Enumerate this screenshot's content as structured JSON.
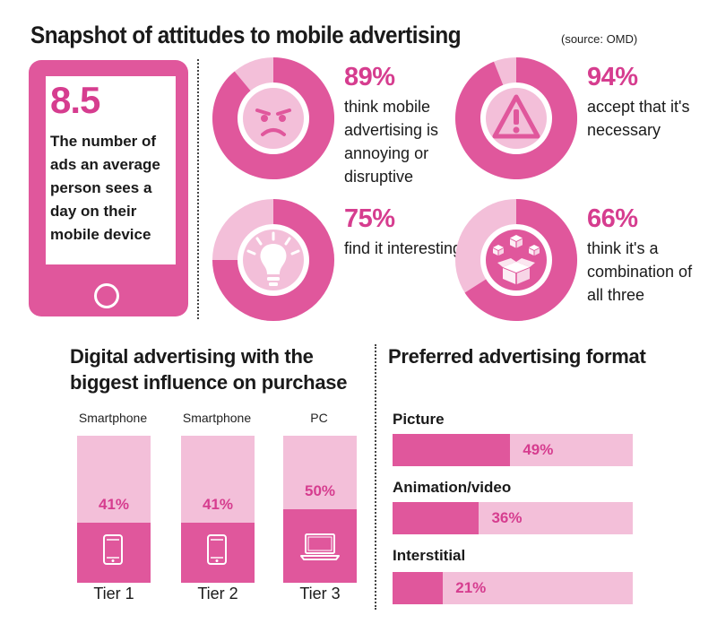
{
  "header": {
    "title": "Snapshot of attitudes to mobile advertising",
    "source": "(source: OMD)"
  },
  "phone": {
    "number": "8.5",
    "caption": "The number of ads an average person sees a day on their mobile device"
  },
  "colors": {
    "primary": "#e0579c",
    "light": "#f3bfd9",
    "accent_text": "#d63d8f"
  },
  "chart_data": [
    {
      "type": "pie",
      "title": "Snapshot of attitudes to mobile advertising",
      "items": [
        {
          "value": 89,
          "label": "89%",
          "text": "think mobile advertising is annoying or disruptive",
          "icon": "angry-face-icon"
        },
        {
          "value": 94,
          "label": "94%",
          "text": "accept that it's necessary",
          "icon": "warning-icon"
        },
        {
          "value": 75,
          "label": "75%",
          "text": "find it interesting",
          "icon": "lightbulb-icon"
        },
        {
          "value": 66,
          "label": "66%",
          "text": "think it's a combination of all three",
          "icon": "boxes-icon"
        }
      ]
    },
    {
      "type": "bar",
      "title": "Digital advertising with the biggest influence on purchase",
      "categories": [
        "Tier 1",
        "Tier 2",
        "Tier 3"
      ],
      "devices": [
        "Smartphone",
        "Smartphone",
        "PC"
      ],
      "device_icons": [
        "smartphone-icon",
        "smartphone-icon",
        "laptop-icon"
      ],
      "values": [
        41,
        41,
        50
      ],
      "labels": [
        "41%",
        "41%",
        "50%"
      ],
      "ylim": [
        0,
        100
      ]
    },
    {
      "type": "bar",
      "orientation": "horizontal",
      "title": "Preferred advertising format",
      "categories": [
        "Picture",
        "Animation/video",
        "Interstitial"
      ],
      "values": [
        49,
        36,
        21
      ],
      "labels": [
        "49%",
        "36%",
        "21%"
      ],
      "xlim": [
        0,
        100
      ]
    }
  ]
}
